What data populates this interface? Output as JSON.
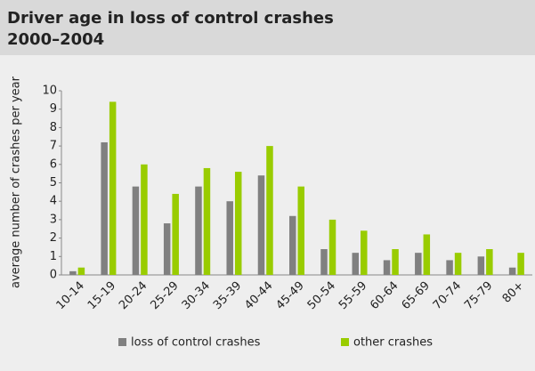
{
  "chart_data": {
    "type": "bar",
    "title": [
      "Driver age in loss of control crashes",
      "2000–2004"
    ],
    "ylabel": "average number of crashes per year",
    "categories": [
      "10-14",
      "15-19",
      "20-24",
      "25-29",
      "30-34",
      "35-39",
      "40-44",
      "45-49",
      "50-54",
      "55-59",
      "60-64",
      "65-69",
      "70-74",
      "75-79",
      "80+"
    ],
    "series": [
      {
        "name": "loss of control crashes",
        "color": "#808080",
        "values": [
          0.2,
          7.2,
          4.8,
          2.8,
          4.8,
          4.0,
          5.4,
          3.2,
          1.4,
          1.2,
          0.8,
          1.2,
          0.8,
          1.0,
          0.4
        ]
      },
      {
        "name": "other crashes",
        "color": "#99cc00",
        "values": [
          0.4,
          9.4,
          6.0,
          4.4,
          5.8,
          5.6,
          7.0,
          4.8,
          3.0,
          2.4,
          1.4,
          2.2,
          1.2,
          1.4,
          1.2
        ]
      }
    ],
    "ylim": [
      0,
      10
    ],
    "yticks": [
      0,
      1,
      2,
      3,
      4,
      5,
      6,
      7,
      8,
      9,
      10
    ],
    "grid": false,
    "legend": "bottom"
  }
}
